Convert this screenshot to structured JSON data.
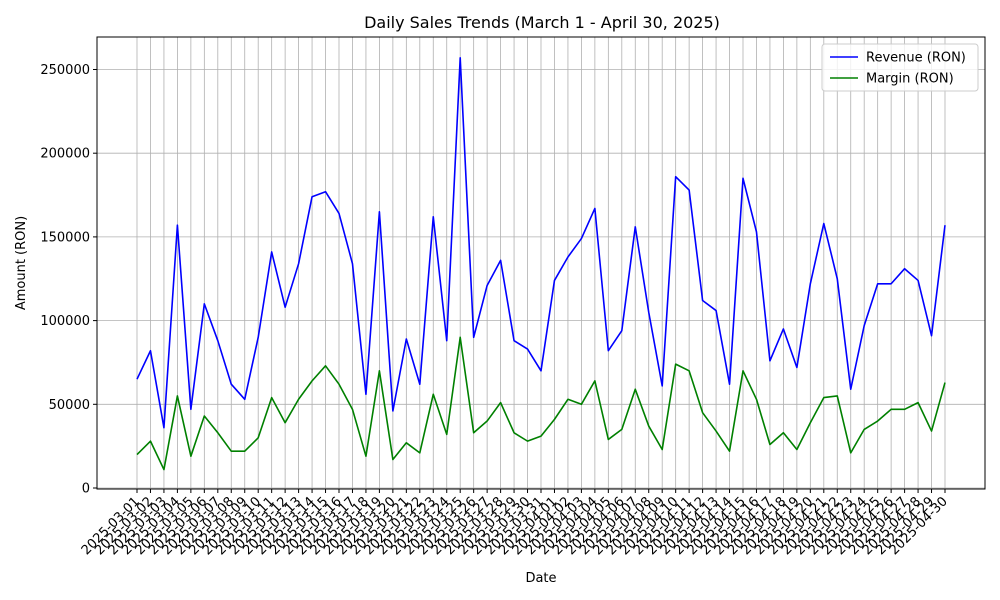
{
  "chart_data": {
    "type": "line",
    "title": "Daily Sales Trends (March 1 - April 30, 2025)",
    "xlabel": "Date",
    "ylabel": "Amount (RON)",
    "ylim": [
      0,
      270000
    ],
    "yticks": [
      0,
      50000,
      100000,
      150000,
      200000,
      250000
    ],
    "ytick_labels": [
      "0",
      "50000",
      "100000",
      "150000",
      "200000",
      "250000"
    ],
    "grid": true,
    "legend_position": "upper right",
    "x": [
      "2025-03-01",
      "2025-03-02",
      "2025-03-03",
      "2025-03-04",
      "2025-03-05",
      "2025-03-06",
      "2025-03-07",
      "2025-03-08",
      "2025-03-09",
      "2025-03-10",
      "2025-03-11",
      "2025-03-12",
      "2025-03-13",
      "2025-03-14",
      "2025-03-15",
      "2025-03-16",
      "2025-03-17",
      "2025-03-18",
      "2025-03-19",
      "2025-03-20",
      "2025-03-21",
      "2025-03-22",
      "2025-03-23",
      "2025-03-24",
      "2025-03-25",
      "2025-03-26",
      "2025-03-27",
      "2025-03-28",
      "2025-03-29",
      "2025-03-30",
      "2025-03-31",
      "2025-04-01",
      "2025-04-02",
      "2025-04-03",
      "2025-04-04",
      "2025-04-05",
      "2025-04-06",
      "2025-04-07",
      "2025-04-08",
      "2025-04-09",
      "2025-04-10",
      "2025-04-11",
      "2025-04-12",
      "2025-04-13",
      "2025-04-14",
      "2025-04-15",
      "2025-04-16",
      "2025-04-17",
      "2025-04-18",
      "2025-04-19",
      "2025-04-20",
      "2025-04-21",
      "2025-04-22",
      "2025-04-23",
      "2025-04-24",
      "2025-04-25",
      "2025-04-26",
      "2025-04-27",
      "2025-04-28",
      "2025-04-29",
      "2025-04-30"
    ],
    "series": [
      {
        "name": "Revenue (RON)",
        "color": "#0000ff",
        "values": [
          65000,
          82000,
          36000,
          157000,
          47000,
          110000,
          88000,
          62000,
          53000,
          90000,
          141000,
          108000,
          134000,
          174000,
          177000,
          164000,
          134000,
          56000,
          165000,
          46000,
          89000,
          62000,
          162000,
          88000,
          257000,
          90000,
          121000,
          136000,
          88000,
          83000,
          70000,
          124000,
          138000,
          149000,
          167000,
          82000,
          94000,
          156000,
          105000,
          61000,
          186000,
          178000,
          112000,
          106000,
          62000,
          185000,
          153000,
          76000,
          95000,
          72000,
          122000,
          158000,
          125000,
          59000,
          97000,
          122000,
          122000,
          131000,
          124000,
          91000,
          157000
        ]
      },
      {
        "name": "Margin (RON)",
        "color": "#008000",
        "values": [
          20000,
          28000,
          11000,
          55000,
          19000,
          43000,
          33000,
          22000,
          22000,
          30000,
          54000,
          39000,
          53000,
          64000,
          73000,
          62000,
          47000,
          19000,
          70000,
          17000,
          27000,
          21000,
          56000,
          32000,
          90000,
          33000,
          40000,
          51000,
          33000,
          28000,
          31000,
          41000,
          53000,
          50000,
          64000,
          29000,
          35000,
          59000,
          37000,
          23000,
          74000,
          70000,
          45000,
          34000,
          22000,
          70000,
          53000,
          26000,
          33000,
          23000,
          39000,
          54000,
          55000,
          21000,
          35000,
          40000,
          47000,
          47000,
          51000,
          34000,
          63000
        ]
      }
    ]
  }
}
